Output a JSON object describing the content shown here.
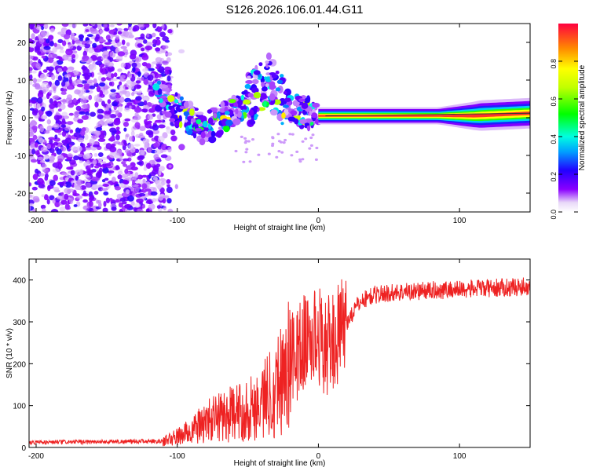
{
  "title": "S126.2026.106.01.44.G11",
  "chart_data": [
    {
      "type": "heatmap",
      "title": "S126.2026.106.01.44.G11",
      "xlabel": "Height of straight line (km)",
      "ylabel": "Frequency (Hz)",
      "xlim": [
        -205,
        150
      ],
      "ylim": [
        -25,
        25
      ],
      "xticks": [
        -200,
        -100,
        0,
        100
      ],
      "yticks": [
        -20,
        -10,
        0,
        10,
        20
      ],
      "colorbar": {
        "label": "Normalized spectral amplitude",
        "range": [
          0,
          1
        ],
        "ticks": [
          0.0,
          0.2,
          0.4,
          0.6,
          0.8
        ]
      },
      "regions": [
        {
          "name": "noise",
          "x_range": [
            -205,
            -105
          ],
          "freq_range": [
            -25,
            25
          ],
          "amplitude_range": [
            0.05,
            0.25
          ]
        },
        {
          "name": "scattered-signal",
          "x_range": [
            -115,
            0
          ],
          "freq_trend": [
            [
              -115,
              7
            ],
            [
              -100,
              2
            ],
            [
              -80,
              -3
            ],
            [
              -60,
              2
            ],
            [
              -45,
              6
            ],
            [
              -35,
              10
            ],
            [
              -20,
              2
            ],
            [
              0,
              1
            ]
          ],
          "amplitude_range": [
            0.1,
            0.8
          ]
        },
        {
          "name": "steady-carrier",
          "x_range": [
            0,
            150
          ],
          "freq_trend": [
            [
              0,
              0.5
            ],
            [
              90,
              0.5
            ],
            [
              110,
              0.5
            ],
            [
              150,
              1.2
            ]
          ],
          "amplitude": 0.85
        }
      ]
    },
    {
      "type": "line",
      "xlabel": "Height of straight line (km)",
      "ylabel": "SNR (10 * v/v)",
      "xlim": [
        -205,
        150
      ],
      "ylim": [
        0,
        450
      ],
      "xticks": [
        -200,
        -100,
        0,
        100
      ],
      "yticks": [
        0,
        100,
        200,
        300,
        400
      ],
      "color": "#ee2222",
      "series": [
        {
          "name": "SNR envelope",
          "x": [
            -205,
            -110,
            -100,
            -90,
            -80,
            -70,
            -60,
            -50,
            -40,
            -30,
            -20,
            -10,
            0,
            5,
            10,
            20,
            30,
            40,
            60,
            80,
            100,
            120,
            150
          ],
          "y": [
            12,
            15,
            25,
            40,
            60,
            75,
            80,
            90,
            110,
            150,
            200,
            250,
            270,
            240,
            250,
            300,
            350,
            365,
            372,
            375,
            378,
            380,
            385
          ]
        }
      ]
    }
  ]
}
